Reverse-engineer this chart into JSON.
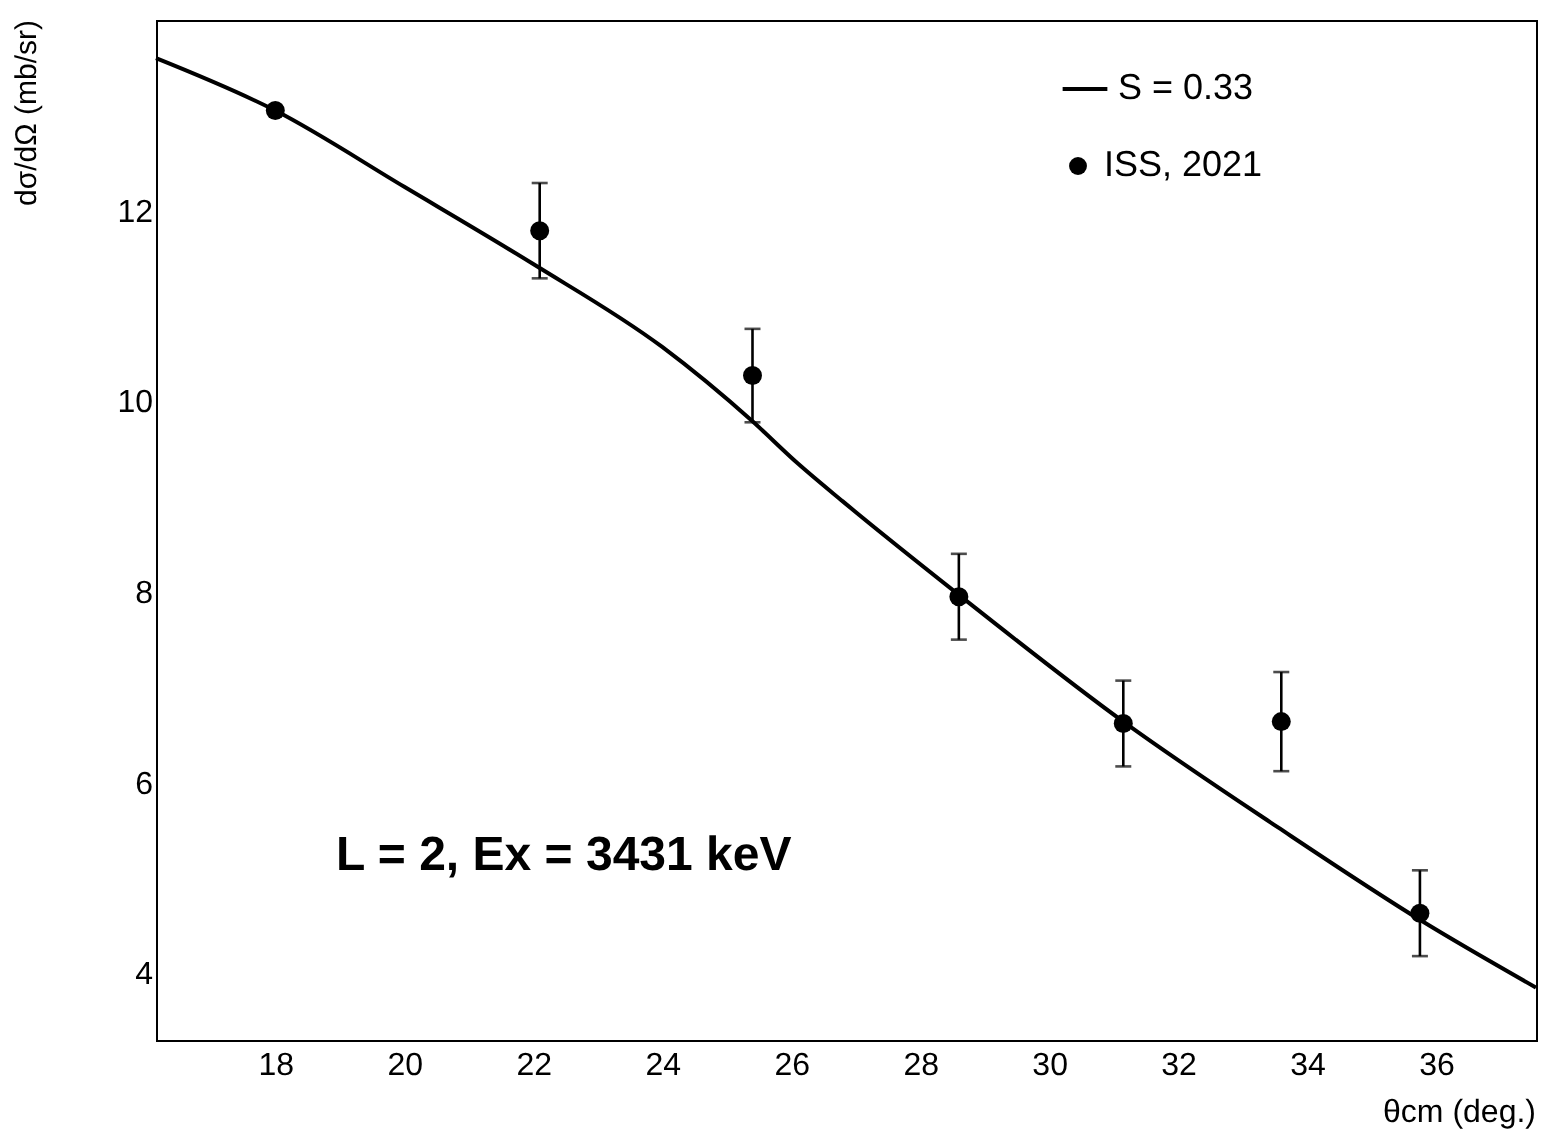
{
  "chart_data": {
    "type": "scatter",
    "xlabel": "θcm (deg.)",
    "ylabel": "dσ/dΩ (mb/sr)",
    "xlim": [
      16.15,
      37.55
    ],
    "ylim": [
      3.3,
      14.0
    ],
    "xticks": [
      18,
      20,
      22,
      24,
      26,
      28,
      30,
      32,
      34,
      36
    ],
    "yticks": [
      4,
      6,
      8,
      10,
      12
    ],
    "grid": false,
    "legend": "top right",
    "annotations": [
      "L = 2, Ex = 3431 keV"
    ],
    "series": [
      {
        "name": "S = 0.33",
        "type": "line",
        "color": "#000000",
        "marker": "none",
        "line_style": "solid",
        "x": [
          16.15,
          18,
          20,
          22,
          24,
          25.4,
          26.1,
          26.8,
          28.6,
          31.15,
          33.55,
          35.8,
          37.55
        ],
        "values": [
          13.6,
          13.05,
          12.25,
          11.44,
          10.57,
          9.79,
          9.35,
          8.95,
          7.97,
          6.64,
          5.53,
          4.54,
          3.85
        ]
      },
      {
        "name": "ISS, 2021",
        "color": "#000000",
        "marker": "circle",
        "x": [
          18.0,
          22.1,
          25.4,
          28.6,
          31.15,
          33.6,
          35.75
        ],
        "values": [
          13.05,
          11.79,
          10.27,
          7.95,
          6.62,
          6.64,
          4.63
        ],
        "errors": [
          0.03,
          0.5,
          0.49,
          0.45,
          0.45,
          0.52,
          0.45
        ]
      }
    ]
  }
}
